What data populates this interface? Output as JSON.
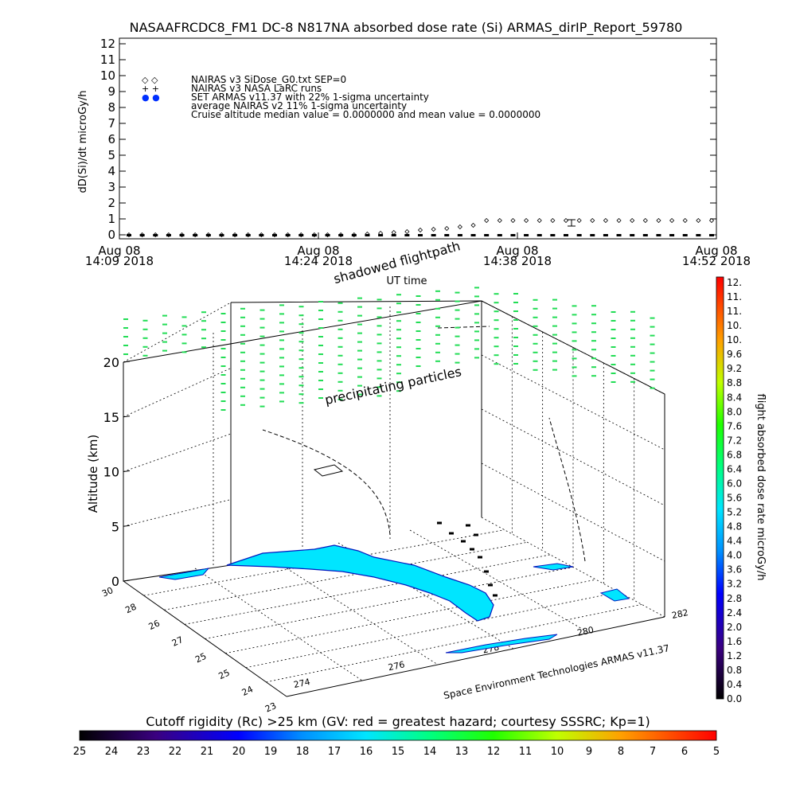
{
  "title": "NASAAFRCDC8_FM1 DC-8   N817NA absorbed dose rate (Si) ARMAS_dirIP_Report_59780",
  "chart_data": [
    {
      "type": "scatter",
      "ylabel": "dD(Si)/dt microGy/h",
      "xlabel": "UT time",
      "ylim": [
        0,
        12
      ],
      "yticks": [
        "0",
        "1",
        "2",
        "3",
        "4",
        "5",
        "6",
        "7",
        "8",
        "9",
        "10",
        "11",
        "12"
      ],
      "xticks": [
        {
          "date": "Aug 08",
          "time": "14:09 2018"
        },
        {
          "date": "Aug 08",
          "time": "14:24 2018"
        },
        {
          "date": "Aug 08",
          "time": "14:38 2018"
        },
        {
          "date": "Aug 08",
          "time": "14:52 2018"
        }
      ],
      "legend": [
        {
          "symbol": "◇  ◇",
          "label": "NAIRAS v3 SiDose_G0.txt SEP=0"
        },
        {
          "symbol": "+  +",
          "label": "NAIRAS v3 NASA LaRC runs"
        },
        {
          "symbol": "●  ●",
          "label": "SET ARMAS v11.37 with 22% 1-sigma uncertainty"
        },
        {
          "symbol": "",
          "label": "average NAIRAS v2 11% 1-sigma uncertainty"
        },
        {
          "symbol": "",
          "label": "Cruise altitude median value = 0.0000000 and mean value = 0.0000000"
        }
      ],
      "series": [
        {
          "marker": "diamond",
          "values": [
            0,
            0,
            0,
            0,
            0,
            0,
            0,
            0,
            0,
            0,
            0,
            0,
            0,
            0,
            0,
            0,
            0,
            0,
            0.05,
            0.1,
            0.15,
            0.2,
            0.3,
            0.35,
            0.4,
            0.5,
            0.6,
            0.9,
            0.9,
            0.9,
            0.9,
            0.9,
            0.9,
            0.9,
            0.9,
            0.9,
            0.9,
            0.9,
            0.9,
            0.9,
            0.9,
            0.9,
            0.9,
            0.9,
            0.9
          ]
        },
        {
          "marker": "dot",
          "values": [
            0,
            0,
            0,
            0,
            0,
            0,
            0,
            0,
            0,
            0,
            0,
            0,
            0,
            0,
            0,
            0,
            0,
            0,
            0,
            0,
            0,
            0,
            0,
            0,
            0,
            0,
            0,
            0,
            0,
            0,
            0,
            0,
            0,
            0,
            0,
            0,
            0,
            0,
            0,
            0,
            0,
            0,
            0,
            0,
            0
          ]
        }
      ]
    },
    {
      "type": "scatter3d",
      "zlabel": "Altitude (km)",
      "zticks": [
        "0",
        "5",
        "10",
        "15",
        "20"
      ],
      "lat_ticks": [
        "30",
        "28",
        "26",
        "27",
        "25",
        "25",
        "24",
        "23"
      ],
      "lon_ticks": [
        "274",
        "276",
        "278",
        "280",
        "282"
      ],
      "annotations": [
        "shadowed flightpath",
        "precipitating particles"
      ],
      "credit": "Space Environment Technologies ARMAS v11.37",
      "map_color": "#00e5ff",
      "particle_color": "#22dd55"
    }
  ],
  "colorbar": {
    "label": "flight absorbed dose rate microGy/h",
    "ticks": [
      "12.",
      "11.",
      "11.",
      "10.",
      "10.",
      "9.6",
      "9.2",
      "8.8",
      "8.4",
      "8.0",
      "7.6",
      "7.2",
      "6.8",
      "6.4",
      "6.0",
      "5.6",
      "5.2",
      "4.8",
      "4.4",
      "4.0",
      "3.6",
      "3.2",
      "2.8",
      "2.4",
      "2.0",
      "1.6",
      "1.2",
      "0.8",
      "0.4",
      "0.0"
    ]
  },
  "cutoff_bar": {
    "label": "Cutoff rigidity (Rc) >25 km (GV: red = greatest hazard; courtesy SSSRC; Kp=1)",
    "ticks": [
      "25",
      "24",
      "23",
      "22",
      "21",
      "20",
      "19",
      "18",
      "17",
      "16",
      "15",
      "14",
      "13",
      "12",
      "11",
      "10",
      "9",
      "8",
      "7",
      "6",
      "5"
    ]
  }
}
